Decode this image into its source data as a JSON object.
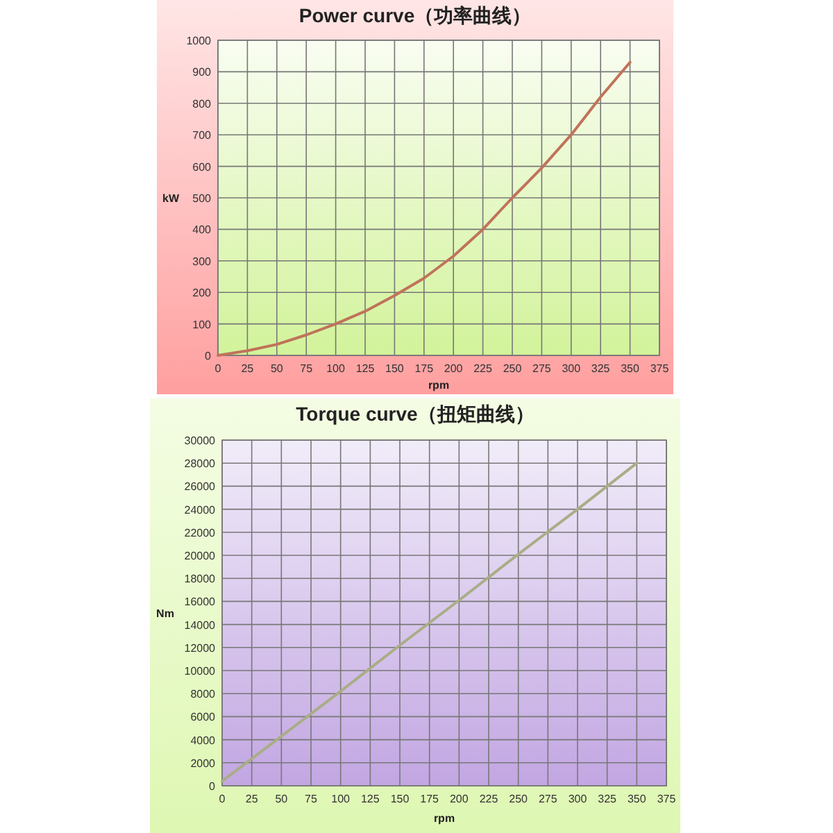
{
  "chart_data": [
    {
      "type": "line",
      "title": "Power curve（功率曲线）",
      "xlabel": "rpm",
      "ylabel": "kW",
      "x": [
        0,
        25,
        50,
        75,
        100,
        125,
        150,
        175,
        200,
        225,
        250,
        275,
        300,
        325,
        350
      ],
      "series": [
        {
          "color": "#c0735a",
          "values": [
            0,
            15,
            35,
            65,
            100,
            140,
            190,
            245,
            315,
            400,
            500,
            595,
            700,
            820,
            930
          ]
        }
      ],
      "xlim": [
        0,
        375
      ],
      "xticks": [
        0,
        25,
        50,
        75,
        100,
        125,
        150,
        175,
        200,
        225,
        250,
        275,
        300,
        325,
        350,
        375
      ],
      "ylim": [
        0,
        1000
      ],
      "yticks": [
        0,
        100,
        200,
        300,
        400,
        500,
        600,
        700,
        800,
        900,
        1000
      ],
      "grid": true
    },
    {
      "type": "line",
      "title": "Torque curve（扭矩曲线）",
      "xlabel": "rpm",
      "ylabel": "Nm",
      "x": [
        0,
        50,
        100,
        150,
        200,
        250,
        300,
        350
      ],
      "series": [
        {
          "color": "#a9ad86",
          "values": [
            400,
            4300,
            8200,
            12200,
            16100,
            20100,
            24000,
            28000
          ]
        }
      ],
      "xlim": [
        0,
        375
      ],
      "xticks": [
        0,
        25,
        50,
        75,
        100,
        125,
        150,
        175,
        200,
        225,
        250,
        275,
        300,
        325,
        350,
        375
      ],
      "ylim": [
        0,
        30000
      ],
      "yticks": [
        0,
        2000,
        4000,
        6000,
        8000,
        10000,
        12000,
        14000,
        16000,
        18000,
        20000,
        22000,
        24000,
        26000,
        28000,
        30000
      ],
      "grid": true
    }
  ]
}
